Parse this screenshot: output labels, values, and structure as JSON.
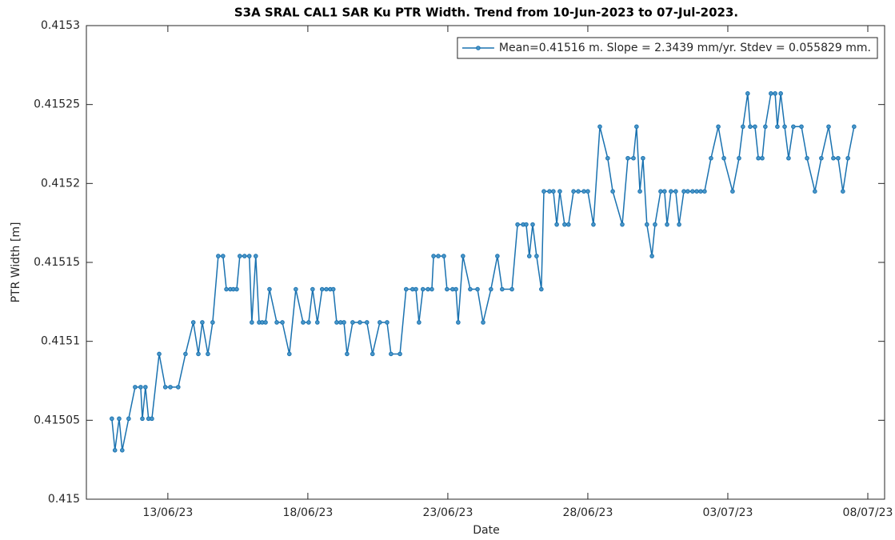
{
  "chart_data": {
    "type": "line",
    "title": "S3A SRAL CAL1 SAR Ku PTR Width. Trend from 10-Jun-2023 to 07-Jul-2023.",
    "xlabel": "Date",
    "ylabel": "PTR Width [m]",
    "xlim": [
      10.09,
      38.6
    ],
    "xticks": [
      {
        "value": 13,
        "label": "13/06/23"
      },
      {
        "value": 18,
        "label": "18/06/23"
      },
      {
        "value": 23,
        "label": "23/06/23"
      },
      {
        "value": 28,
        "label": "28/06/23"
      },
      {
        "value": 33,
        "label": "03/07/23"
      },
      {
        "value": 38,
        "label": "08/07/23"
      }
    ],
    "ylim": [
      0.415,
      0.4153
    ],
    "yticks": [
      0.415,
      0.41505,
      0.4151,
      0.41515,
      0.4152,
      0.41525,
      0.4153
    ],
    "grid": false,
    "legend": "northeast",
    "x": [
      11.0,
      11.11,
      11.26,
      11.37,
      11.6,
      11.83,
      12.03,
      12.09,
      12.2,
      12.31,
      12.43,
      12.69,
      12.91,
      13.09,
      13.37,
      13.63,
      13.91,
      14.09,
      14.23,
      14.43,
      14.6,
      14.8,
      14.97,
      15.09,
      15.23,
      15.34,
      15.46,
      15.57,
      15.74,
      15.91,
      16.0,
      16.14,
      16.26,
      16.37,
      16.49,
      16.63,
      16.89,
      17.09,
      17.34,
      17.57,
      17.83,
      18.03,
      18.17,
      18.34,
      18.51,
      18.66,
      18.8,
      18.91,
      19.03,
      19.17,
      19.29,
      19.4,
      19.6,
      19.86,
      20.11,
      20.31,
      20.57,
      20.83,
      20.97,
      21.29,
      21.51,
      21.74,
      21.86,
      21.97,
      22.11,
      22.29,
      22.43,
      22.49,
      22.66,
      22.86,
      22.97,
      23.17,
      23.29,
      23.37,
      23.54,
      23.8,
      24.06,
      24.26,
      24.54,
      24.77,
      24.94,
      25.29,
      25.49,
      25.69,
      25.8,
      25.91,
      26.03,
      26.17,
      26.34,
      26.43,
      26.63,
      26.77,
      26.89,
      27.0,
      27.17,
      27.31,
      27.49,
      27.66,
      27.86,
      28.0,
      28.2,
      28.43,
      28.71,
      28.89,
      29.23,
      29.43,
      29.63,
      29.74,
      29.86,
      29.97,
      30.11,
      30.29,
      30.4,
      30.6,
      30.74,
      30.83,
      30.97,
      31.14,
      31.26,
      31.43,
      31.57,
      31.74,
      31.89,
      32.03,
      32.17,
      32.4,
      32.66,
      32.86,
      33.17,
      33.4,
      33.54,
      33.71,
      33.8,
      33.97,
      34.09,
      34.23,
      34.34,
      34.54,
      34.69,
      34.77,
      34.89,
      35.03,
      35.17,
      35.34,
      35.63,
      35.83,
      36.11,
      36.34,
      36.6,
      36.77,
      36.94,
      37.11,
      37.29,
      37.51
    ],
    "series": [
      {
        "name": "Mean=0.41516 m. Slope = 2.3439 mm/yr. Stdev = 0.055829 mm.",
        "color": "#1a72b0",
        "values": [
          0.415051,
          0.415031,
          0.415051,
          0.415031,
          0.415051,
          0.415071,
          0.415071,
          0.415051,
          0.415071,
          0.415051,
          0.415051,
          0.415092,
          0.415071,
          0.415071,
          0.415071,
          0.415092,
          0.415112,
          0.415092,
          0.415112,
          0.415092,
          0.415112,
          0.415154,
          0.415154,
          0.415133,
          0.415133,
          0.415133,
          0.415133,
          0.415154,
          0.415154,
          0.415154,
          0.415112,
          0.415154,
          0.415112,
          0.415112,
          0.415112,
          0.415133,
          0.415112,
          0.415112,
          0.415092,
          0.415133,
          0.415112,
          0.415112,
          0.415133,
          0.415112,
          0.415133,
          0.415133,
          0.415133,
          0.415133,
          0.415112,
          0.415112,
          0.415112,
          0.415092,
          0.415112,
          0.415112,
          0.415112,
          0.415092,
          0.415112,
          0.415112,
          0.415092,
          0.415092,
          0.415133,
          0.415133,
          0.415133,
          0.415112,
          0.415133,
          0.415133,
          0.415133,
          0.415154,
          0.415154,
          0.415154,
          0.415133,
          0.415133,
          0.415133,
          0.415112,
          0.415154,
          0.415133,
          0.415133,
          0.415112,
          0.415133,
          0.415154,
          0.415133,
          0.415133,
          0.415174,
          0.415174,
          0.415174,
          0.415154,
          0.415174,
          0.415154,
          0.415133,
          0.415195,
          0.415195,
          0.415195,
          0.415174,
          0.415195,
          0.415174,
          0.415174,
          0.415195,
          0.415195,
          0.415195,
          0.415195,
          0.415174,
          0.415236,
          0.415216,
          0.415195,
          0.415174,
          0.415216,
          0.415216,
          0.415236,
          0.415195,
          0.415216,
          0.415174,
          0.415154,
          0.415174,
          0.415195,
          0.415195,
          0.415174,
          0.415195,
          0.415195,
          0.415174,
          0.415195,
          0.415195,
          0.415195,
          0.415195,
          0.415195,
          0.415195,
          0.415216,
          0.415236,
          0.415216,
          0.415195,
          0.415216,
          0.415236,
          0.415257,
          0.415236,
          0.415236,
          0.415216,
          0.415216,
          0.415236,
          0.415257,
          0.415257,
          0.415236,
          0.415257,
          0.415236,
          0.415216,
          0.415236,
          0.415236,
          0.415216,
          0.415195,
          0.415216,
          0.415236,
          0.415216,
          0.415216,
          0.415195,
          0.415216,
          0.415236
        ]
      }
    ]
  }
}
